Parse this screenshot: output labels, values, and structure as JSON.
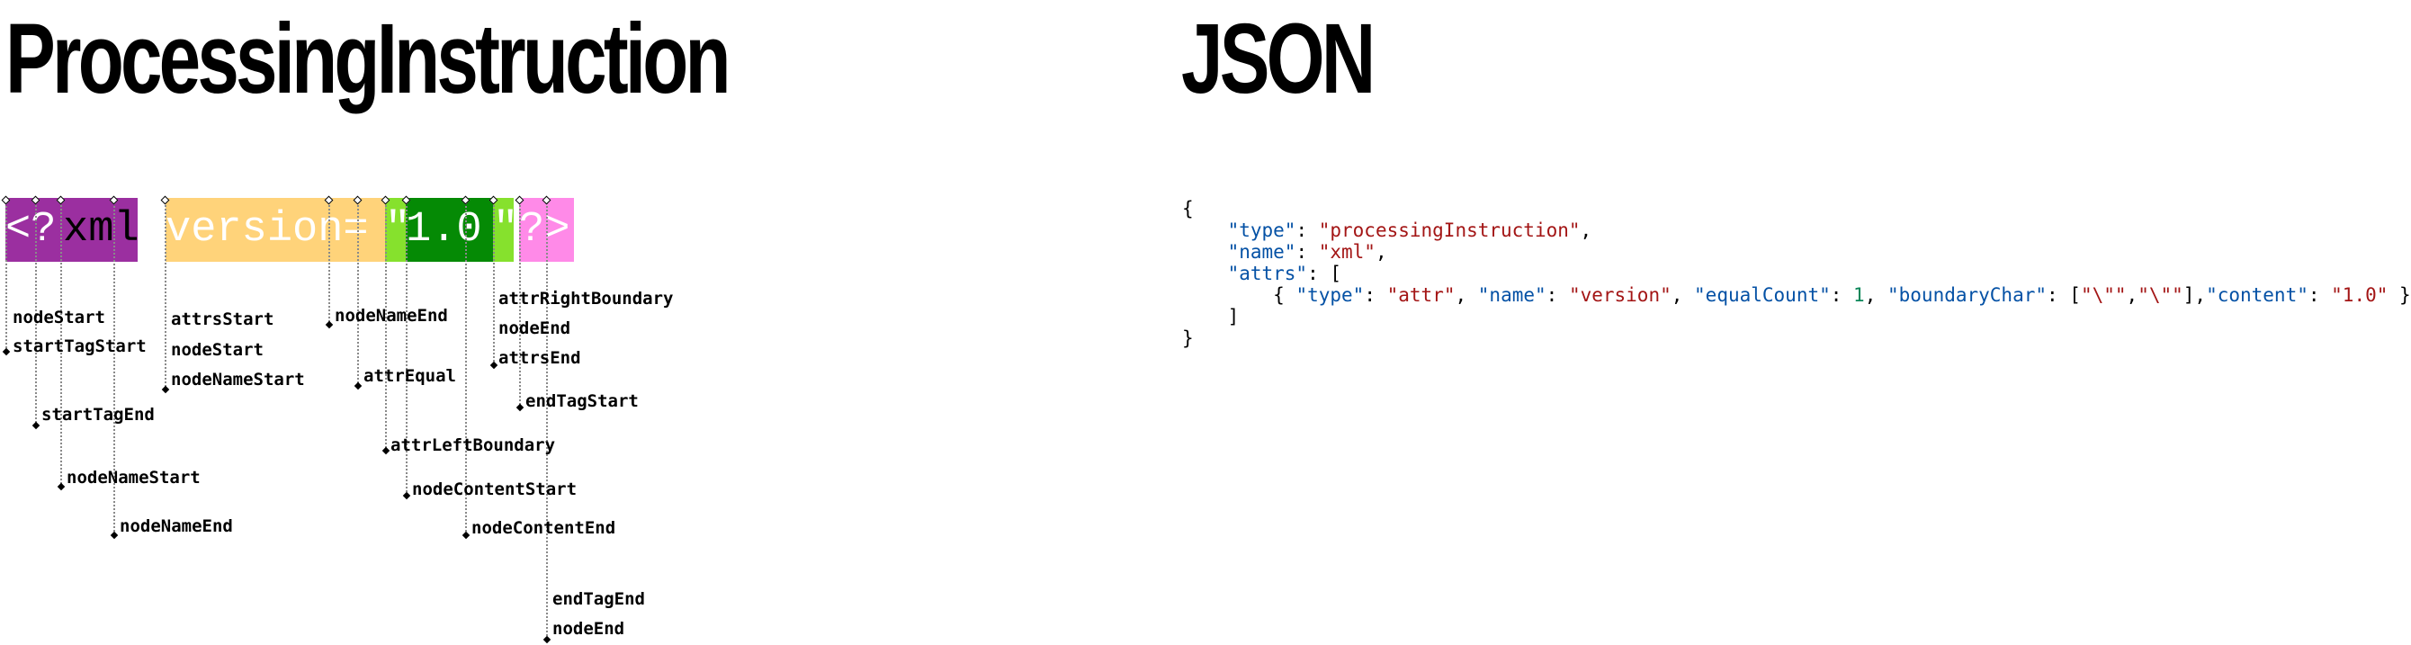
{
  "titles": {
    "left": "ProcessingInstruction",
    "right": "JSON"
  },
  "segments": [
    {
      "text": "<?",
      "bg": "#9b2fa0",
      "fg": "#ffffff"
    },
    {
      "text": "xml",
      "bg": "#9b2fa0",
      "fg": "#000000"
    },
    {
      "text": "version=",
      "bg": "#ffd37a",
      "fg": "#ffffff"
    },
    {
      "text": "\"",
      "bg": "#86e12d",
      "fg": "#ffffff"
    },
    {
      "text": "1.0",
      "bg": "#058a05",
      "fg": "#ffffff"
    },
    {
      "text": "\"",
      "bg": "#86e12d",
      "fg": "#ffffff"
    },
    {
      "text": "?>",
      "bg": "#ff8ae8",
      "fg": "#ffffff"
    }
  ],
  "labels": {
    "nodeStart": "nodeStart",
    "startTagStart": "startTagStart",
    "startTagEnd": "startTagEnd",
    "nodeNameStart": "nodeNameStart",
    "nodeNameEnd": "nodeNameEnd",
    "attrsStart": "attrsStart",
    "attrNodeStart": "nodeStart",
    "attrNodeNameStart": "nodeNameStart",
    "attrNodeNameEnd": "nodeNameEnd",
    "attrEqual": "attrEqual",
    "attrLeftBoundary": "attrLeftBoundary",
    "nodeContentStart": "nodeContentStart",
    "nodeContentEnd": "nodeContentEnd",
    "attrRightBoundary": "attrRightBoundary",
    "attrNodeEnd": "nodeEnd",
    "attrsEnd": "attrsEnd",
    "endTagStart": "endTagStart",
    "endTagEnd": "endTagEnd",
    "nodeEnd": "nodeEnd"
  },
  "json": {
    "open_brace": "{",
    "close_brace": "}",
    "key_type": "\"type\"",
    "val_type": "\"processingInstruction\"",
    "key_name": "\"name\"",
    "val_name": "\"xml\"",
    "key_attrs": "\"attrs\"",
    "open_bracket": "[",
    "close_bracket": "]",
    "attr_open": "{",
    "attr_close": "}",
    "attr_key_type": "\"type\"",
    "attr_val_type": "\"attr\"",
    "attr_key_name": "\"name\"",
    "attr_val_name": "\"version\"",
    "attr_key_equal": "\"equalCount\"",
    "attr_val_equal": "1",
    "attr_key_boundary": "\"boundaryChar\"",
    "attr_val_boundary_1": "\"\\\"\"",
    "attr_val_boundary_2": "\"\\\"\"",
    "attr_key_content": "\"content\"",
    "attr_val_content": "\"1.0\""
  }
}
